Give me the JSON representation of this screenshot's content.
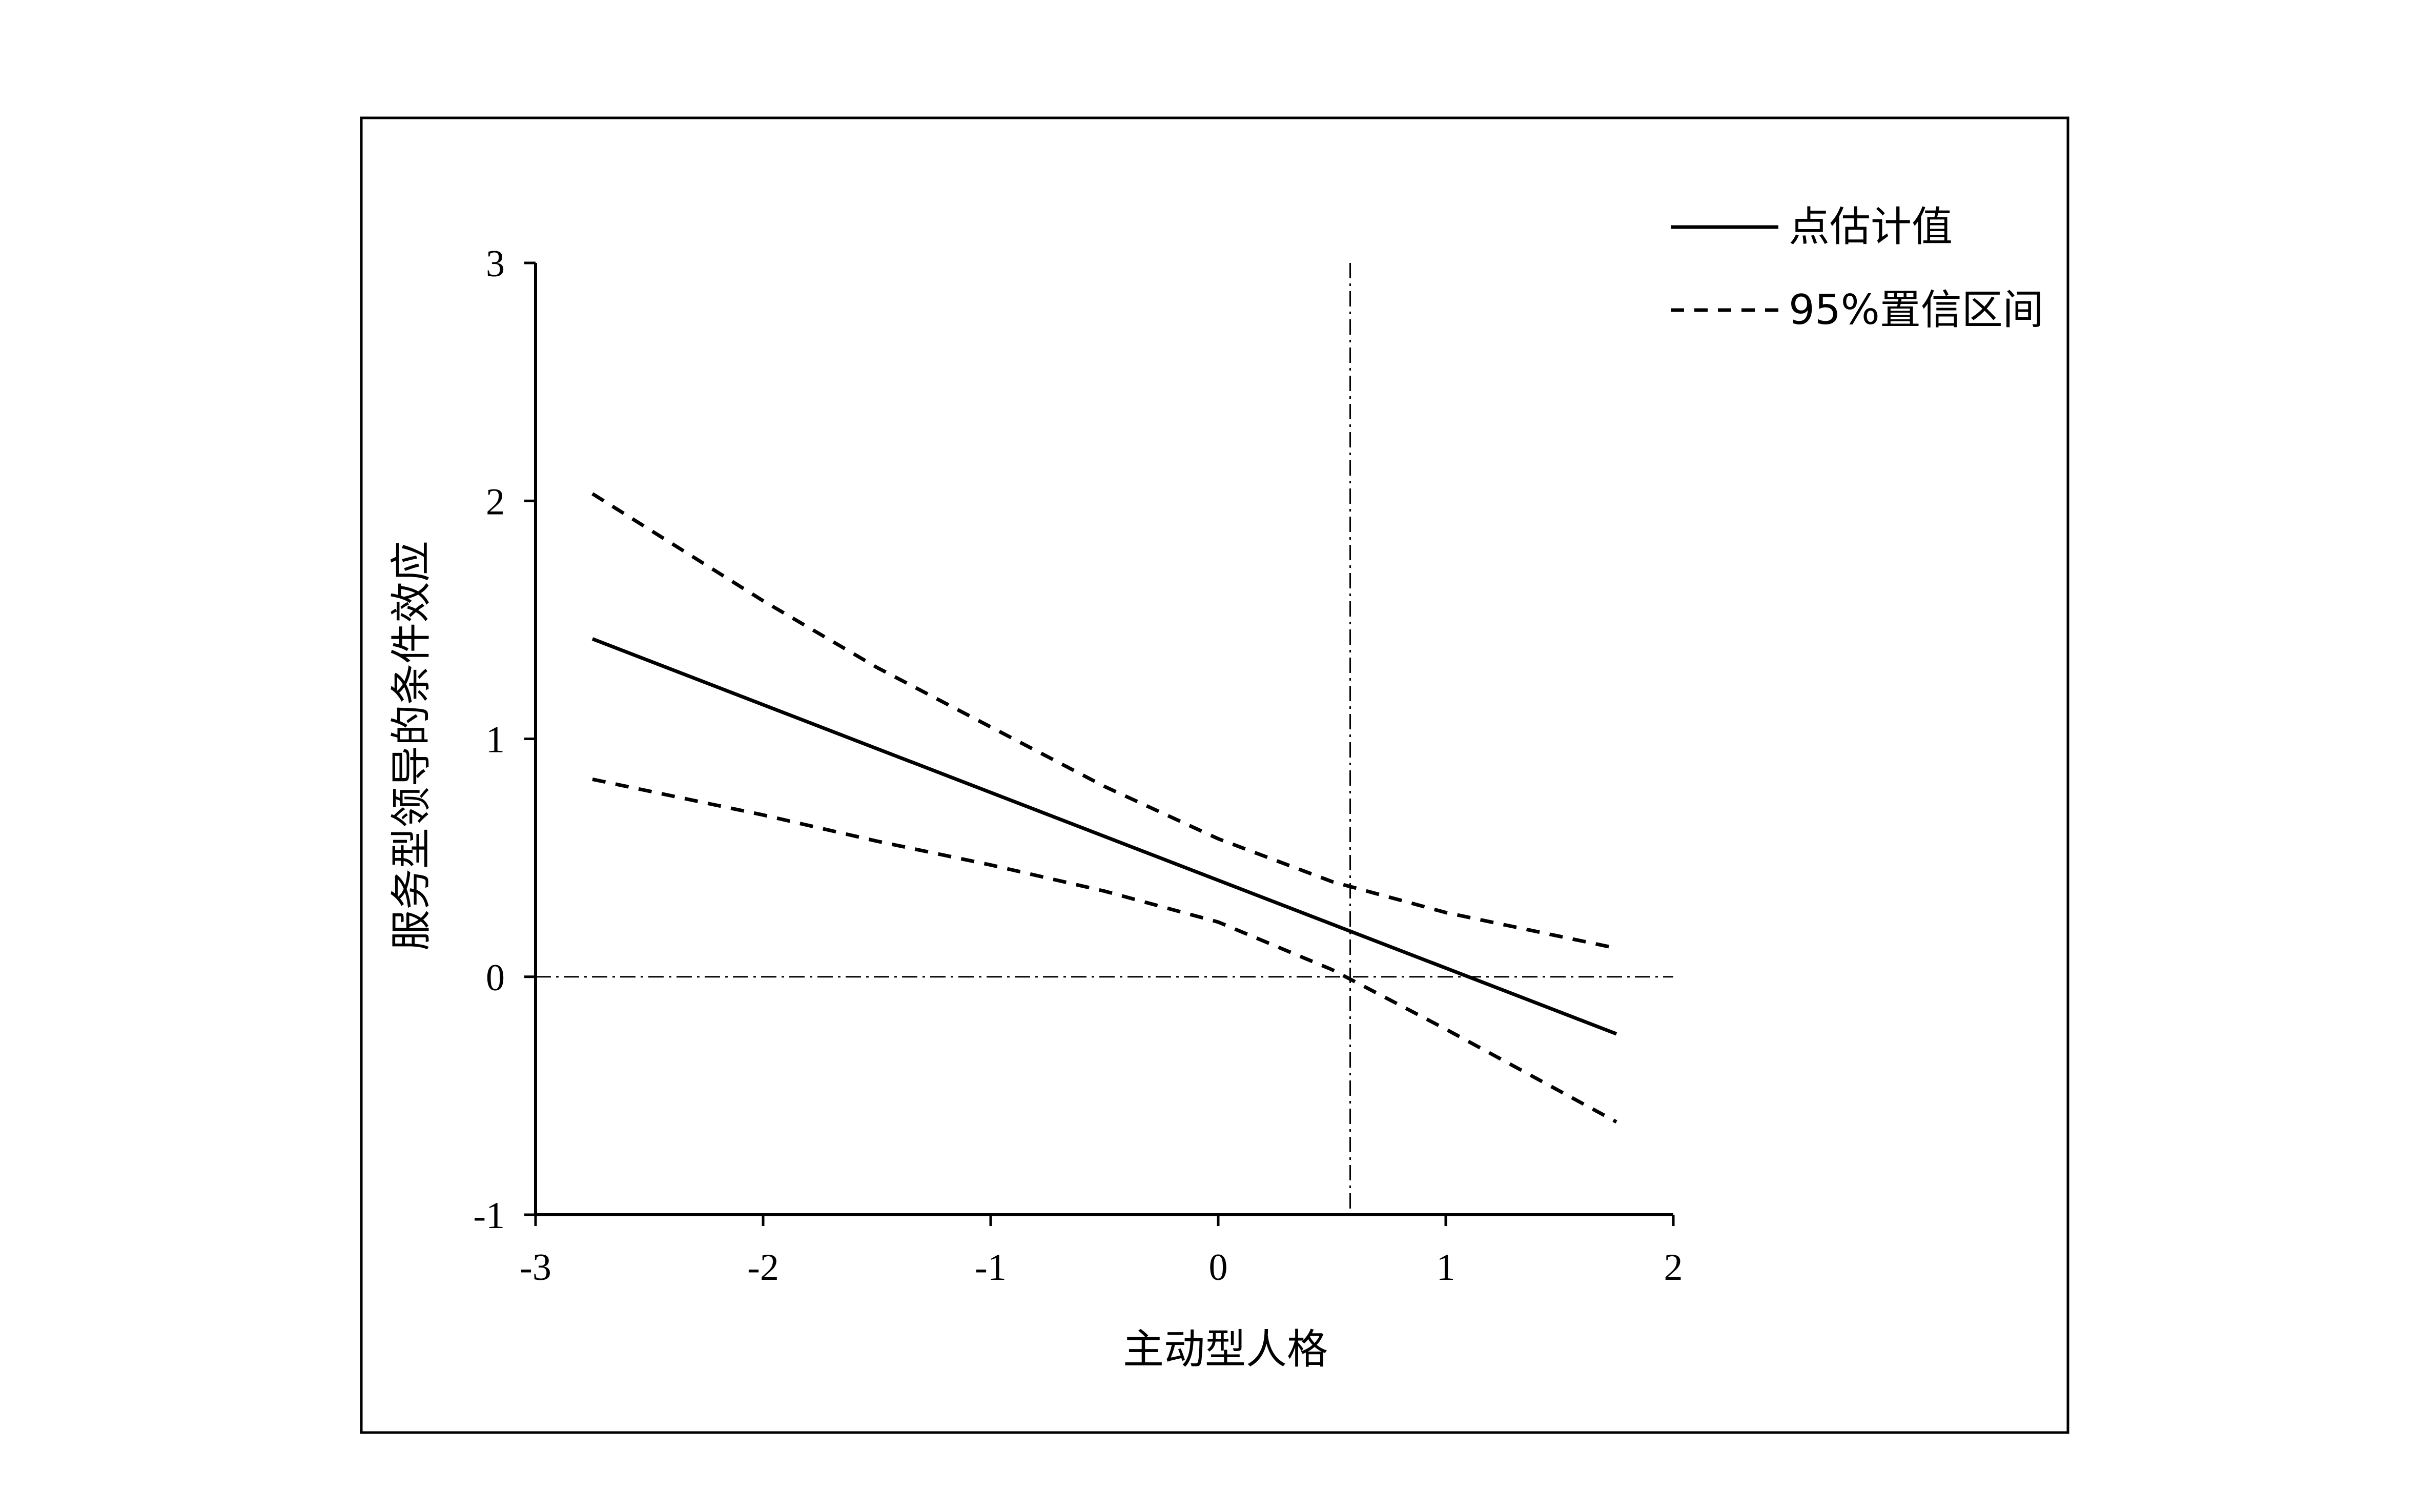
{
  "chart_data": {
    "type": "line",
    "xlabel": "主动型人格",
    "ylabel": "服务型领导的条件效应",
    "xlim": [
      -3,
      2
    ],
    "ylim": [
      -1,
      3
    ],
    "x_ticks": [
      -3,
      -2,
      -1,
      0,
      1,
      2
    ],
    "y_ticks": [
      -1,
      0,
      1,
      2,
      3
    ],
    "legend_position": "top-right",
    "series": [
      {
        "name": "点估计值",
        "style": "solid",
        "x": [
          -2.75,
          1.75
        ],
        "y": [
          1.42,
          -0.24
        ]
      },
      {
        "name": "95%置信区间",
        "style": "dashed",
        "x": [
          -2.75,
          -2.0,
          -1.5,
          -1.0,
          -0.5,
          0.0,
          0.5,
          1.0,
          1.5,
          1.75
        ],
        "y": [
          2.03,
          1.58,
          1.3,
          1.05,
          0.8,
          0.58,
          0.4,
          0.27,
          0.17,
          0.12
        ]
      },
      {
        "name": "95%置信区间",
        "style": "dashed",
        "x": [
          -2.75,
          -2.0,
          -1.5,
          -1.0,
          -0.5,
          0.0,
          0.5,
          1.0,
          1.5,
          1.75
        ],
        "y": [
          0.83,
          0.68,
          0.57,
          0.47,
          0.36,
          0.23,
          0.03,
          -0.22,
          -0.48,
          -0.61
        ]
      }
    ],
    "reference_lines": [
      {
        "orientation": "horizontal",
        "value": 0,
        "style": "dash-dot"
      },
      {
        "orientation": "vertical",
        "value": 0.58,
        "style": "dash-dot"
      }
    ],
    "legend_entries": [
      "点估计值",
      "95%置信区间"
    ]
  }
}
